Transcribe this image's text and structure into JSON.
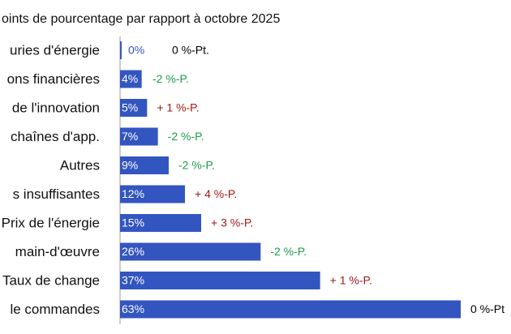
{
  "chart_data": {
    "type": "hbar",
    "title": "oints de pourcentage par rapport à octobre 2025",
    "categories": [
      "uries d'énergie",
      "ons financières",
      "de l'innovation",
      "chaînes d'app.",
      "Autres",
      "s insuffisantes",
      "Prix de l'énergie",
      "main-d'œuvre",
      "Taux de change",
      "le commandes"
    ],
    "values": [
      0,
      4,
      5,
      7,
      9,
      12,
      15,
      26,
      37,
      63
    ],
    "value_labels": [
      "0%",
      "4%",
      "5%",
      "7%",
      "9%",
      "12%",
      "15%",
      "26%",
      "37%",
      "63%"
    ],
    "color": "#3355c0",
    "changes": [
      "0 %-Pt.",
      "-2 %-P.",
      "+ 1 %-P.",
      "-2 %-P.",
      "-2 %-P.",
      "+ 4 %-P.",
      "+ 3 %-P.",
      "-2 %-P.",
      "+ 1 %-P.",
      "0 %-Pt"
    ],
    "change_colors": [
      "#000000",
      "#1e9a4a",
      "#a01818",
      "#1e9a4a",
      "#1e9a4a",
      "#a01818",
      "#a01818",
      "#1e9a4a",
      "#a01818",
      "#000000"
    ],
    "xlim": [
      0,
      63
    ]
  }
}
